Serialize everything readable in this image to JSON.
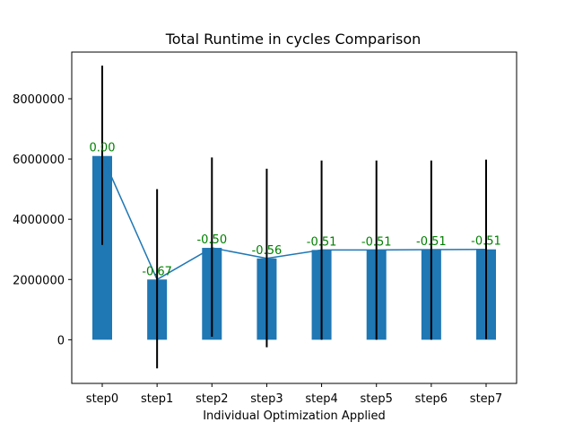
{
  "chart_data": {
    "type": "bar",
    "title": "Total Runtime in cycles Comparison",
    "xlabel": "Individual Optimization Applied",
    "ylabel": "",
    "categories": [
      "step0",
      "step1",
      "step2",
      "step3",
      "step4",
      "step5",
      "step6",
      "step7"
    ],
    "values": [
      6100000,
      2000000,
      3050000,
      2700000,
      2980000,
      2980000,
      2990000,
      3000000
    ],
    "error_low": [
      3150000,
      -950000,
      100000,
      -250000,
      0,
      0,
      0,
      20000
    ],
    "error_high": [
      9100000,
      5000000,
      6050000,
      5680000,
      5950000,
      5950000,
      5950000,
      5980000
    ],
    "bar_labels": [
      "0.00",
      "-0.67",
      "-0.50",
      "-0.56",
      "-0.51",
      "-0.51",
      "-0.51",
      "-0.51"
    ],
    "yticks": [
      0,
      2000000,
      4000000,
      6000000,
      8000000
    ],
    "ytick_labels": [
      "0",
      "2000000",
      "4000000",
      "6000000",
      "8000000"
    ],
    "ylim": [
      -1450000,
      9550000
    ],
    "grid": false,
    "overlay_line": true,
    "colors": {
      "bar": "#1f77b4",
      "line": "#1f77b4",
      "error": "#000000",
      "label": "#008000"
    }
  }
}
